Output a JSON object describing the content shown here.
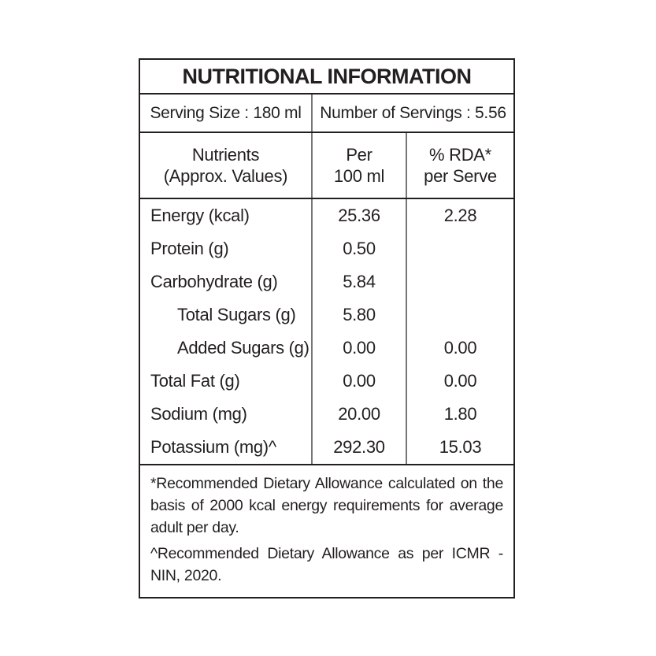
{
  "table": {
    "title": "NUTRITIONAL INFORMATION",
    "serving": {
      "serving_size": "Serving Size : 180 ml",
      "number_of_servings": "Number of Servings : 5.56"
    },
    "columns": {
      "nutrients_line1": "Nutrients",
      "nutrients_line2": "(Approx. Values)",
      "per_line1": "Per",
      "per_line2": "100 ml",
      "rda_line1": "% RDA*",
      "rda_line2": "per Serve"
    },
    "rows": [
      {
        "name": "Energy (kcal)",
        "per_100ml": "25.36",
        "rda_per_serve": "2.28"
      },
      {
        "name": "Protein (g)",
        "per_100ml": "0.50",
        "rda_per_serve": ""
      },
      {
        "name": "Carbohydrate (g)",
        "per_100ml": "5.84",
        "rda_per_serve": ""
      },
      {
        "name": "Total Sugars (g)",
        "per_100ml": "5.80",
        "rda_per_serve": ""
      },
      {
        "name": "Added Sugars (g)",
        "per_100ml": "0.00",
        "rda_per_serve": "0.00"
      },
      {
        "name": "Total Fat (g)",
        "per_100ml": "0.00",
        "rda_per_serve": "0.00"
      },
      {
        "name": "Sodium (mg)",
        "per_100ml": "20.00",
        "rda_per_serve": "1.80"
      },
      {
        "name": "Potassium (mg)^",
        "per_100ml": "292.30",
        "rda_per_serve": "15.03"
      }
    ],
    "footnotes": [
      "*Recommended Dietary Allowance calculated on the basis of 2000 kcal energy requirements for average adult per day.",
      "^Recommended Dietary Allowance as per ICMR - NIN, 2020."
    ],
    "colors": {
      "text": "#231f20",
      "border_dark": "#231f20",
      "border_gray": "#767676",
      "background": "#ffffff"
    }
  }
}
